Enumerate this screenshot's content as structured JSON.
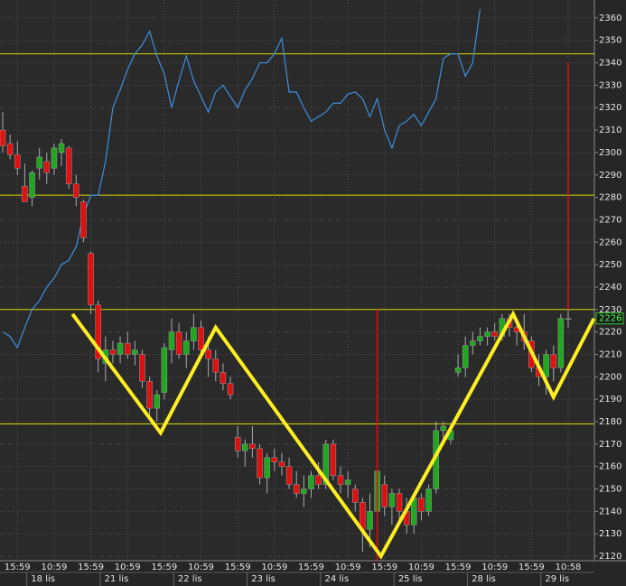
{
  "chart_data": {
    "type": "candlestick",
    "categories": [
      null,
      null,
      "15:59",
      null,
      null,
      null,
      null,
      "10:59",
      null,
      null,
      null,
      null,
      "15:59",
      null,
      null,
      null,
      null,
      "10:59",
      null,
      null,
      null,
      null,
      "15:59",
      null,
      null,
      null,
      null,
      "10:59",
      null,
      null,
      null,
      null,
      "15:59",
      null,
      null,
      null,
      null,
      "10:59",
      null,
      null,
      null,
      null,
      "15:59",
      null,
      null,
      null,
      null,
      "10:59",
      null,
      null,
      null,
      null,
      "15:59",
      null,
      null,
      null,
      null,
      "10:59",
      null,
      null,
      null,
      null,
      "15:59",
      null,
      null,
      null,
      null,
      "10:59",
      null,
      null,
      null,
      null,
      "15:59",
      null,
      null,
      null,
      null,
      "10:58"
    ],
    "dates": [
      null,
      null,
      null,
      null,
      null,
      "18 lis",
      null,
      null,
      null,
      null,
      null,
      null,
      null,
      null,
      null,
      "21 lis",
      null,
      null,
      null,
      null,
      null,
      null,
      null,
      null,
      null,
      "22 lis",
      null,
      null,
      null,
      null,
      null,
      null,
      null,
      null,
      null,
      "23 lis",
      null,
      null,
      null,
      null,
      null,
      null,
      null,
      null,
      null,
      "24 lis",
      null,
      null,
      null,
      null,
      null,
      null,
      null,
      null,
      null,
      "25 lis",
      null,
      null,
      null,
      null,
      null,
      null,
      null,
      null,
      null,
      "28 lis",
      null,
      null,
      null,
      null,
      null,
      null,
      null,
      null,
      null,
      "29 lis",
      null,
      null
    ],
    "open": [
      2310,
      2304,
      2299,
      2285,
      2280,
      2293,
      2296,
      2293,
      2300,
      2302,
      2286,
      2278,
      2255,
      2232,
      2206,
      2212,
      2210,
      2215,
      2210,
      2210,
      2198,
      2186,
      2193,
      2212,
      2220,
      2210,
      2216,
      2222,
      2212,
      2208,
      2202,
      2197,
      2173,
      2167,
      2170,
      2168,
      2155,
      2164,
      2162,
      2160,
      2152,
      2148,
      2150,
      2156,
      2152,
      2170,
      2156,
      2152,
      2150,
      2144,
      2132,
      2140,
      2152,
      2142,
      2148,
      2140,
      2134,
      2146,
      2140,
      2150,
      2176,
      2172,
      2202,
      2204,
      2214,
      2216,
      2218,
      2220,
      2218,
      2226,
      2222,
      2220,
      2216,
      2204,
      2200,
      2210,
      2204,
      2226
    ],
    "high": [
      2318,
      2308,
      2305,
      2295,
      2292,
      2302,
      2300,
      2304,
      2306,
      2303,
      2290,
      2279,
      2256,
      2234,
      2218,
      2216,
      2218,
      2220,
      2216,
      2212,
      2200,
      2194,
      2215,
      2226,
      2224,
      2220,
      2228,
      2225,
      2218,
      2212,
      2206,
      2200,
      2178,
      2172,
      2178,
      2170,
      2166,
      2168,
      2166,
      2164,
      2158,
      2156,
      2158,
      2162,
      2172,
      2172,
      2160,
      2158,
      2152,
      2146,
      2148,
      2162,
      2156,
      2150,
      2150,
      2146,
      2148,
      2148,
      2152,
      2180,
      2180,
      2178,
      2210,
      2218,
      2220,
      2222,
      2222,
      2224,
      2228,
      2228,
      2226,
      2228,
      2218,
      2210,
      2212,
      2214,
      2228,
      2230
    ],
    "low": [
      2300,
      2297,
      2290,
      2278,
      2276,
      2288,
      2286,
      2290,
      2294,
      2284,
      2276,
      2260,
      2228,
      2202,
      2198,
      2206,
      2206,
      2208,
      2205,
      2195,
      2182,
      2180,
      2190,
      2206,
      2208,
      2204,
      2212,
      2208,
      2200,
      2198,
      2194,
      2190,
      2164,
      2160,
      2164,
      2152,
      2148,
      2158,
      2156,
      2150,
      2146,
      2142,
      2146,
      2150,
      2150,
      2154,
      2148,
      2146,
      2140,
      2122,
      2124,
      2136,
      2138,
      2134,
      2136,
      2130,
      2130,
      2136,
      2138,
      2148,
      2170,
      2170,
      2200,
      2200,
      2210,
      2214,
      2214,
      2216,
      2216,
      2218,
      2214,
      2212,
      2202,
      2196,
      2192,
      2198,
      2202,
      2222
    ],
    "close": [
      2303,
      2299,
      2293,
      2278,
      2291,
      2298,
      2291,
      2302,
      2304,
      2286,
      2280,
      2262,
      2232,
      2208,
      2212,
      2210,
      2215,
      2210,
      2212,
      2198,
      2186,
      2192,
      2213,
      2220,
      2210,
      2216,
      2222,
      2212,
      2208,
      2202,
      2197,
      2192,
      2167,
      2170,
      2168,
      2155,
      2164,
      2162,
      2160,
      2152,
      2148,
      2150,
      2156,
      2152,
      2170,
      2156,
      2152,
      2154,
      2144,
      2132,
      2140,
      2158,
      2142,
      2148,
      2140,
      2134,
      2146,
      2140,
      2150,
      2176,
      2178,
      2176,
      2204,
      2214,
      2216,
      2218,
      2220,
      2218,
      2226,
      2222,
      2220,
      2216,
      2204,
      2200,
      2210,
      2204,
      2226,
      2226
    ],
    "up_color": "#1fa81f",
    "down_color": "#e01010",
    "line": {
      "color": "#3d8fe0",
      "values": [
        2220,
        2218,
        2213,
        2222,
        2230,
        2234,
        2240,
        2244,
        2250,
        2252,
        2258,
        2272,
        2281,
        2281,
        2296,
        2320,
        2328,
        2337,
        2344,
        2348,
        2354,
        2343,
        2335,
        2320,
        2332,
        2343,
        2332,
        2325,
        2318,
        2327,
        2330,
        2325,
        2320,
        2328,
        2333,
        2340,
        2340,
        2344,
        2351,
        2327,
        2327,
        2320,
        2314,
        2316,
        2318,
        2322,
        2322,
        2326,
        2327,
        2324,
        2316,
        2324,
        2310,
        2302,
        2312,
        2314,
        2317,
        2312,
        2318,
        2324,
        2342,
        2344,
        2344,
        2334,
        2340,
        2364,
        null,
        null,
        null,
        null,
        null,
        null,
        null,
        null,
        null,
        null,
        null,
        null
      ]
    },
    "hlines": {
      "color": "#d8d800",
      "values": [
        2344,
        2281,
        2230,
        2179
      ]
    },
    "vlines": [
      {
        "color": "#e01010",
        "x": 51,
        "y": [
          2230,
          2118
        ]
      },
      {
        "color": "#e01010",
        "x": 77,
        "y": [
          2340,
          2230
        ]
      }
    ],
    "pattern": {
      "color": "#ffee22",
      "x": [
        9.5,
        21.5,
        29,
        51.5,
        69.5,
        75,
        80.5
      ],
      "y": [
        2228,
        2175,
        2222,
        2120,
        2228,
        2191,
        2226
      ]
    },
    "last_price": 2226,
    "ylim": [
      2118,
      2368
    ],
    "yticks": [
      2120,
      2130,
      2140,
      2150,
      2160,
      2170,
      2180,
      2190,
      2200,
      2210,
      2220,
      2230,
      2240,
      2250,
      2260,
      2270,
      2280,
      2290,
      2300,
      2310,
      2320,
      2330,
      2340,
      2350,
      2360
    ],
    "grid": true
  }
}
